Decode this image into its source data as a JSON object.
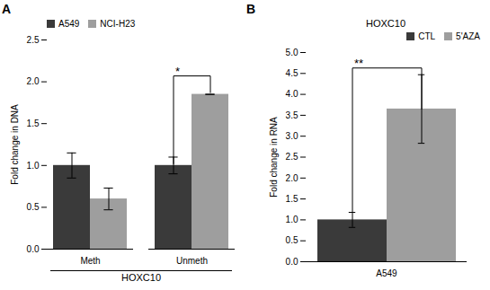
{
  "chart_data": [
    {
      "type": "bar",
      "title": "A",
      "xlabel": "HOXC10",
      "ylabel": "Fold change in DNA",
      "categories": [
        "Meth",
        "Unmeth"
      ],
      "series": [
        {
          "name": "A549",
          "color": "#3a3a3a",
          "values": [
            1.0,
            1.0
          ],
          "errors": [
            0.15,
            0.1
          ]
        },
        {
          "name": "NCI-H23",
          "color": "#9e9e9e",
          "values": [
            0.6,
            1.85
          ],
          "errors": [
            0.13,
            0.0
          ]
        }
      ],
      "ylim": [
        0,
        2.5
      ],
      "yticks": [
        {
          "value": 0,
          "label": "0.0"
        },
        0.5,
        {
          "value": 1.0,
          "label": "1.0"
        },
        1.5,
        {
          "value": 2.0,
          "label": "2.0"
        },
        2.5
      ],
      "legend": "upper left",
      "annotations": [
        {
          "text": "*",
          "category": "Unmeth",
          "from": "A549",
          "to": "NCI-H23",
          "y_top": 2.07,
          "y_from": 1.02,
          "y_to": 1.87
        }
      ]
    },
    {
      "type": "bar",
      "title": "B",
      "subtitle": "HOXC10",
      "ylabel": "Fold change in RNA",
      "categories": [
        "A549"
      ],
      "series": [
        {
          "name": "CTL",
          "color": "#3a3a3a",
          "values": [
            1.0
          ],
          "errors": [
            0.18
          ]
        },
        {
          "name": "5'AZA",
          "color": "#9e9e9e",
          "values": [
            3.65
          ],
          "errors": [
            0.82
          ]
        }
      ],
      "ylim": [
        0,
        5.0
      ],
      "yticks": [
        {
          "value": 0,
          "label": "0.0"
        },
        0.5,
        {
          "value": 1.0,
          "label": "1.0"
        },
        1.5,
        {
          "value": 2.0,
          "label": "2.0"
        },
        2.5,
        {
          "value": 3.0,
          "label": "3.0"
        },
        3.5,
        {
          "value": 4.0,
          "label": "4.0"
        },
        4.5,
        {
          "value": 5.0,
          "label": "5.0"
        }
      ],
      "legend": "upper right",
      "annotations": [
        {
          "text": "**",
          "category": "A549",
          "from": "CTL",
          "to": "5'AZA",
          "y_top": 4.63,
          "y_from": 1.2,
          "y_to": 3.65
        }
      ]
    }
  ]
}
